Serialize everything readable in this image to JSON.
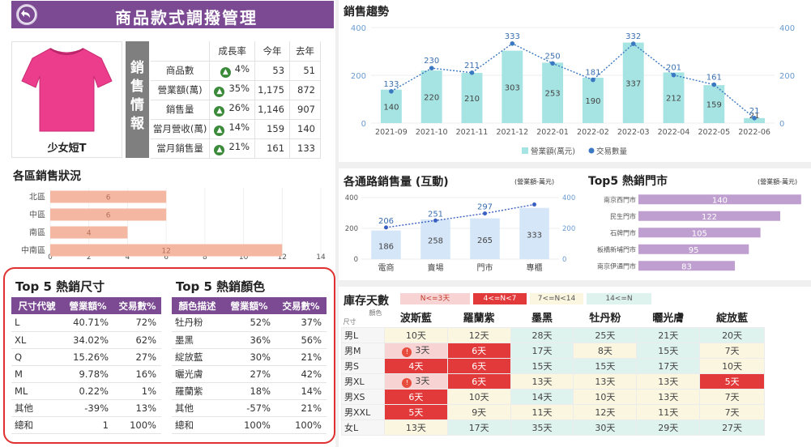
{
  "header": {
    "title": "商品款式調撥管理"
  },
  "product": {
    "name": "少女短T",
    "section_label": "銷售情報"
  },
  "sales_info": {
    "columns": [
      "成長率",
      "今年",
      "去年"
    ],
    "rows": [
      {
        "label": "商品數",
        "growth": "4%",
        "this_year": "53",
        "last_year": "51"
      },
      {
        "label": "營業額(萬)",
        "growth": "35%",
        "this_year": "1,175",
        "last_year": "872"
      },
      {
        "label": "銷售量",
        "growth": "26%",
        "this_year": "1,146",
        "last_year": "907"
      },
      {
        "label": "當月營收(萬)",
        "growth": "14%",
        "this_year": "159",
        "last_year": "140"
      },
      {
        "label": "當月銷售量",
        "growth": "21%",
        "this_year": "161",
        "last_year": "133"
      }
    ]
  },
  "region_title": "各區銷售狀況",
  "trend_title": "銷售趨勢",
  "channel_title": "各通路銷售量 (互動)",
  "channel_unit": "(營業額-萬元)",
  "store_title": "Top5 熱銷門市",
  "store_unit": "(營業額-萬元)",
  "chart_data": [
    {
      "id": "region",
      "type": "bar",
      "orientation": "horizontal",
      "categories": [
        "北區",
        "中區",
        "南區",
        "中南區"
      ],
      "values": [
        6,
        6,
        4,
        12
      ],
      "xlim": [
        0,
        14
      ],
      "xticks": [
        "0",
        "2",
        "4",
        "6",
        "8",
        "10",
        "12",
        "14"
      ],
      "color": "#f4b7a2"
    },
    {
      "id": "trend",
      "type": "bar+line",
      "categories": [
        "2021-09",
        "2021-10",
        "2021-11",
        "2021-12",
        "2022-01",
        "2022-02",
        "2022-03",
        "2022-04",
        "2022-05",
        "2022-06"
      ],
      "series": [
        {
          "name": "營業額(萬元)",
          "type": "bar",
          "values": [
            140,
            220,
            210,
            303,
            253,
            190,
            337,
            212,
            159,
            21
          ],
          "color": "#a6e3e3"
        },
        {
          "name": "交易數量",
          "type": "line",
          "values": [
            133,
            230,
            211,
            333,
            250,
            181,
            332,
            201,
            161,
            21
          ],
          "color": "#3a78c2"
        }
      ],
      "ylim": [
        0,
        400
      ],
      "yticks": [
        "0",
        "200",
        "400"
      ],
      "y2ticks": [
        "0",
        "200",
        "400"
      ]
    },
    {
      "id": "channel",
      "type": "bar+line",
      "categories": [
        "電商",
        "賣場",
        "門市",
        "專櫃"
      ],
      "series": [
        {
          "type": "bar",
          "values": [
            186,
            258,
            265,
            333
          ],
          "color": "#d5e6f8"
        },
        {
          "type": "line",
          "values": [
            206,
            251,
            297,
            355
          ],
          "labels": [
            "206",
            "251",
            "297",
            ""
          ],
          "color": "#3a5fc2"
        }
      ],
      "ylim": [
        0,
        400
      ],
      "yticks": [
        "0",
        "200",
        "400"
      ],
      "y2ticks": [
        "0",
        "200",
        "400"
      ]
    },
    {
      "id": "stores",
      "type": "bar",
      "orientation": "horizontal",
      "categories": [
        "南京西門市",
        "民生門市",
        "石牌門市",
        "板橋新埔門市",
        "南京伊通門市"
      ],
      "values": [
        140,
        122,
        105,
        95,
        83
      ],
      "xlim": [
        0,
        145
      ],
      "color": "#bf9fd0"
    }
  ],
  "top5_size": {
    "title": "Top 5 熱銷尺寸",
    "headers": [
      "尺寸代號",
      "營業額%",
      "交易數%"
    ],
    "rows": [
      [
        "L",
        "40.71%",
        "72%"
      ],
      [
        "XL",
        "34.02%",
        "62%"
      ],
      [
        "Q",
        "15.26%",
        "27%"
      ],
      [
        "M",
        "9.78%",
        "16%"
      ],
      [
        "ML",
        "0.22%",
        "1%"
      ],
      [
        "其他",
        "-39%",
        "13%"
      ],
      [
        "總和",
        "1",
        "100%"
      ]
    ]
  },
  "top5_color": {
    "title": "Top 5 熱銷顏色",
    "headers": [
      "顏色描述",
      "營業額%",
      "交易數%"
    ],
    "rows": [
      [
        "牡丹粉",
        "52%",
        "37%"
      ],
      [
        "墨黑",
        "36%",
        "56%"
      ],
      [
        "綻放藍",
        "30%",
        "21%"
      ],
      [
        "曬光膚",
        "27%",
        "42%"
      ],
      [
        "羅蘭紫",
        "18%",
        "14%"
      ],
      [
        "其他",
        "-57%",
        "21%"
      ],
      [
        "總和",
        "100%",
        "100%"
      ]
    ]
  },
  "inventory": {
    "title": "庫存天數",
    "legend": [
      "N<=3天",
      "4<=N<7",
      "7<=N<14",
      "14<=N"
    ],
    "corner_top": "顏色",
    "corner_bottom": "尺寸",
    "colors": [
      "波斯藍",
      "羅蘭紫",
      "墨黑",
      "牡丹粉",
      "曬光膚",
      "綻放藍"
    ],
    "rows": [
      {
        "size": "男L",
        "cells": [
          {
            "v": "10天",
            "t": "t3"
          },
          {
            "v": "12天",
            "t": "t3"
          },
          {
            "v": "28天",
            "t": "t4"
          },
          {
            "v": "25天",
            "t": "t4"
          },
          {
            "v": "21天",
            "t": "t4"
          },
          {
            "v": "20天",
            "t": "t4"
          }
        ]
      },
      {
        "size": "男M",
        "cells": [
          {
            "v": "3天",
            "t": "t0",
            "w": true
          },
          {
            "v": "6天",
            "t": "t2"
          },
          {
            "v": "17天",
            "t": "t4"
          },
          {
            "v": "8天",
            "t": "t3"
          },
          {
            "v": "15天",
            "t": "t4"
          },
          {
            "v": "7天",
            "t": "t3"
          }
        ]
      },
      {
        "size": "男S",
        "cells": [
          {
            "v": "4天",
            "t": "t2"
          },
          {
            "v": "6天",
            "t": "t2"
          },
          {
            "v": "15天",
            "t": "t4"
          },
          {
            "v": "15天",
            "t": "t4"
          },
          {
            "v": "17天",
            "t": "t4"
          },
          {
            "v": "10天",
            "t": "t3"
          }
        ]
      },
      {
        "size": "男XL",
        "cells": [
          {
            "v": "3天",
            "t": "t0",
            "w": true
          },
          {
            "v": "6天",
            "t": "t2"
          },
          {
            "v": "13天",
            "t": "t3"
          },
          {
            "v": "13天",
            "t": "t3"
          },
          {
            "v": "13天",
            "t": "t3"
          },
          {
            "v": "5天",
            "t": "t2"
          }
        ]
      },
      {
        "size": "男XS",
        "cells": [
          {
            "v": "6天",
            "t": "t2"
          },
          {
            "v": "10天",
            "t": "t3"
          },
          {
            "v": "14天",
            "t": "t4"
          },
          {
            "v": "10天",
            "t": "t3"
          },
          {
            "v": "13天",
            "t": "t3"
          },
          {
            "v": "7天",
            "t": "t3"
          }
        ]
      },
      {
        "size": "男XXL",
        "cells": [
          {
            "v": "5天",
            "t": "t2"
          },
          {
            "v": "9天",
            "t": "t3"
          },
          {
            "v": "11天",
            "t": "t3"
          },
          {
            "v": "12天",
            "t": "t3"
          },
          {
            "v": "11天",
            "t": "t3"
          },
          {
            "v": "7天",
            "t": "t3"
          }
        ]
      },
      {
        "size": "女L",
        "cells": [
          {
            "v": "13天",
            "t": "t3"
          },
          {
            "v": "17天",
            "t": "t4"
          },
          {
            "v": "35天",
            "t": "t4"
          },
          {
            "v": "30天",
            "t": "t4"
          },
          {
            "v": "29天",
            "t": "t4"
          },
          {
            "v": "27天",
            "t": "t4"
          }
        ]
      }
    ]
  }
}
